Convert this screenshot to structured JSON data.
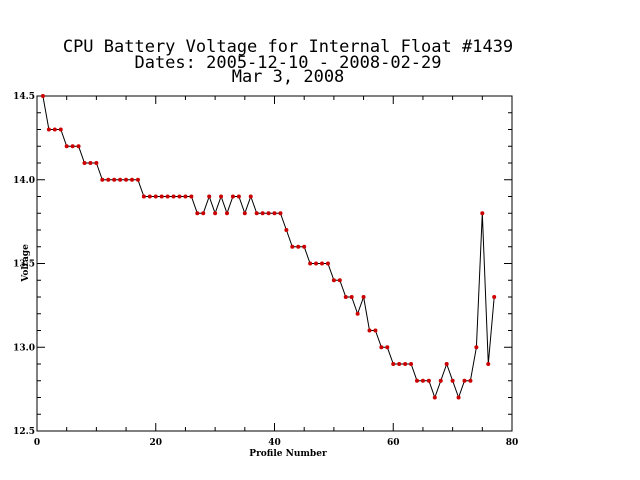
{
  "chart_data": {
    "type": "line",
    "title": "CPU Battery Voltage for Internal Float #1439",
    "subtitle_lines": [
      "Dates:  2005-12-10 -  2008-02-29",
      "Mar  3, 2008"
    ],
    "xlabel": "Profile Number",
    "ylabel": "Voltage",
    "xlim": [
      0,
      80
    ],
    "ylim": [
      12.5,
      14.5
    ],
    "x_ticks": [
      0,
      20,
      40,
      60,
      80
    ],
    "y_ticks": [
      12.5,
      13.0,
      13.5,
      14.0,
      14.5
    ],
    "x_tick_labels": [
      "0",
      "20",
      "40",
      "60",
      "80"
    ],
    "y_tick_labels": [
      "12.5",
      "13.0",
      "13.5",
      "14.0",
      "14.5"
    ],
    "grid": false,
    "line_color": "#000000",
    "marker_color": "#cc0000",
    "series": [
      {
        "x": [
          1,
          2,
          3,
          4,
          5,
          6,
          7,
          8,
          9,
          10,
          11,
          12,
          13,
          14,
          15,
          16,
          17,
          18,
          19,
          20,
          21,
          22,
          23,
          24,
          25,
          26,
          27,
          28,
          29,
          30,
          31,
          32,
          33,
          34,
          35,
          36,
          37,
          38,
          39,
          40,
          41,
          42,
          43,
          44,
          45,
          46,
          47,
          48,
          49,
          50,
          51,
          52,
          53,
          54,
          55,
          56,
          57,
          58,
          59,
          60,
          61,
          62,
          63,
          64,
          65,
          66,
          67,
          68,
          69,
          70,
          71,
          72,
          73,
          74,
          75,
          76,
          77
        ],
        "y": [
          14.5,
          14.3,
          14.3,
          14.3,
          14.2,
          14.2,
          14.2,
          14.1,
          14.1,
          14.1,
          14.0,
          14.0,
          14.0,
          14.0,
          14.0,
          14.0,
          14.0,
          13.9,
          13.9,
          13.9,
          13.9,
          13.9,
          13.9,
          13.9,
          13.9,
          13.9,
          13.8,
          13.8,
          13.9,
          13.8,
          13.9,
          13.8,
          13.9,
          13.9,
          13.8,
          13.9,
          13.8,
          13.8,
          13.8,
          13.8,
          13.8,
          13.7,
          13.6,
          13.6,
          13.6,
          13.5,
          13.5,
          13.5,
          13.5,
          13.4,
          13.4,
          13.3,
          13.3,
          13.2,
          13.3,
          13.1,
          13.1,
          13.0,
          13.0,
          12.9,
          12.9,
          12.9,
          12.9,
          12.8,
          12.8,
          12.8,
          12.7,
          12.8,
          12.9,
          12.8,
          12.7,
          12.8,
          12.8,
          13.0,
          13.8,
          12.9,
          13.3
        ]
      }
    ]
  }
}
